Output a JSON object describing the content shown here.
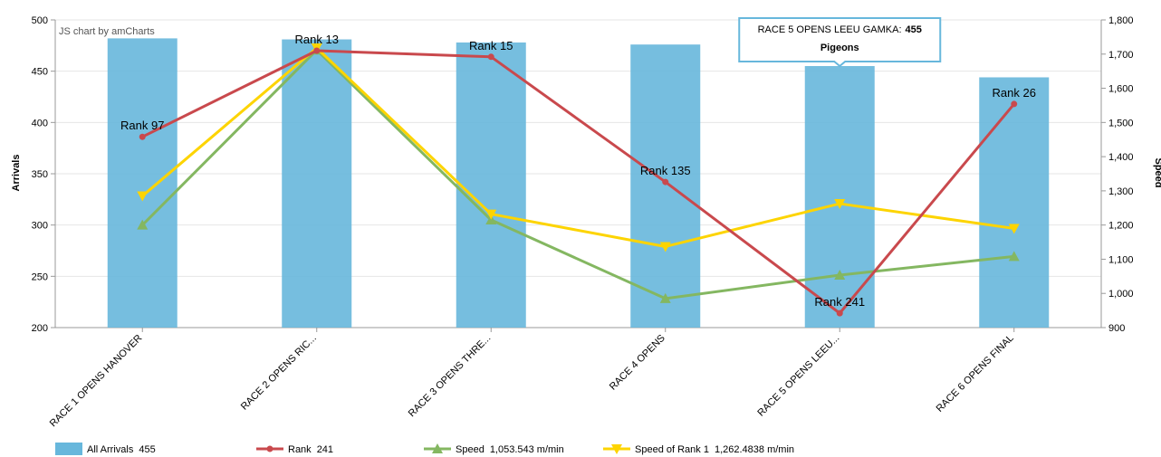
{
  "credit": "JS chart by amCharts",
  "chart_data": {
    "type": "bar",
    "categories": [
      "RACE 1 OPENS HANOVER",
      "RACE 2 OPENS RIC...",
      "RACE 3 OPENS THRE...",
      "RACE 4 OPENS",
      "RACE 5 OPENS LEEU...",
      "RACE 6 OPENS FINAL"
    ],
    "y_left": {
      "label": "Arrivals",
      "min": 200,
      "max": 500,
      "step": 50,
      "ticks": [
        "200",
        "250",
        "300",
        "350",
        "400",
        "450",
        "500"
      ]
    },
    "y_right": {
      "label": "Speed",
      "min": 900,
      "max": 1800,
      "step": 100,
      "ticks": [
        "900",
        "1,000",
        "1,100",
        "1,200",
        "1,300",
        "1,400",
        "1,500",
        "1,600",
        "1,700",
        "1,800"
      ]
    },
    "grid": true,
    "legend_position": "bottom",
    "series": [
      {
        "name": "All Arrivals",
        "type": "bar",
        "axis": "left",
        "color": "#67b7dc",
        "values": [
          482,
          481,
          478,
          476,
          455,
          444
        ]
      },
      {
        "name": "Rank",
        "type": "line",
        "axis": "left",
        "color": "#c9494d",
        "marker": "circle",
        "values": [
          386,
          470,
          464,
          342,
          214,
          418
        ],
        "labels": [
          "Rank 97",
          "Rank 13",
          "Rank 15",
          "Rank 135",
          "Rank 241",
          "Rank 26"
        ]
      },
      {
        "name": "Speed",
        "type": "line",
        "axis": "right",
        "color": "#84b761",
        "marker": "triangle-up",
        "values": [
          1200,
          1712,
          1215,
          985,
          1053.543,
          1108
        ]
      },
      {
        "name": "Speed of Rank 1",
        "type": "line",
        "axis": "right",
        "color": "#fdd400",
        "marker": "triangle-down",
        "values": [
          1285,
          1718,
          1232,
          1137,
          1262.4838,
          1190
        ]
      }
    ]
  },
  "legend": [
    {
      "name": "All Arrivals",
      "value": "455",
      "color": "#67b7dc",
      "marker": "box"
    },
    {
      "name": "Rank",
      "value": "241",
      "color": "#c9494d",
      "marker": "circle"
    },
    {
      "name": "Speed",
      "value": "1,053.543 m/min",
      "color": "#84b761",
      "marker": "triangle-up"
    },
    {
      "name": "Speed of Rank 1",
      "value": "1,262.4838 m/min",
      "color": "#fdd400",
      "marker": "triangle-down"
    }
  ],
  "tooltip": {
    "category_index": 4,
    "title": "RACE 5 OPENS LEEU GAMKA:",
    "value": "455",
    "subtitle": "Pigeons",
    "border_color": "#67b7dc"
  }
}
